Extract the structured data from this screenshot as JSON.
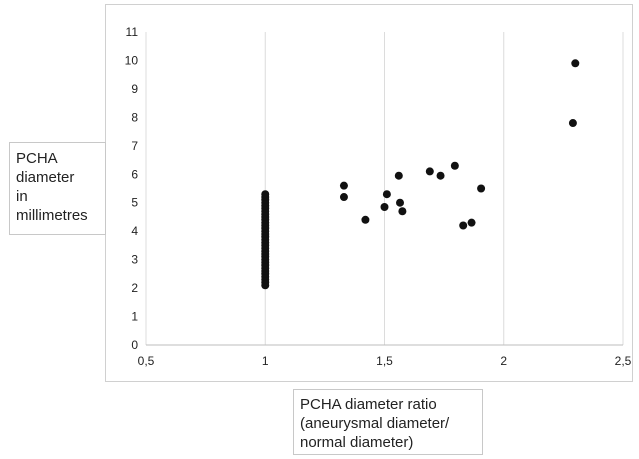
{
  "chart_data": {
    "type": "scatter",
    "xlabel": "PCHA diameter ratio (aneurysmal diameter/ normal diameter)",
    "ylabel": "PCHA diameter in millimetres",
    "xlim": [
      0.5,
      2.5
    ],
    "ylim": [
      0,
      11
    ],
    "x_ticks": [
      "0,5",
      "1",
      "1,5",
      "2",
      "2,5"
    ],
    "y_ticks": [
      "0",
      "1",
      "2",
      "3",
      "4",
      "5",
      "6",
      "7",
      "8",
      "9",
      "10",
      "11"
    ],
    "grid": "vertical",
    "marker_color": "#111111",
    "series": [
      {
        "points": [
          [
            1,
            2.1
          ],
          [
            1,
            2.2
          ],
          [
            1,
            2.3
          ],
          [
            1,
            2.4
          ],
          [
            1,
            2.5
          ],
          [
            1,
            2.6
          ],
          [
            1,
            2.7
          ],
          [
            1,
            2.8
          ],
          [
            1,
            2.9
          ],
          [
            1,
            3.0
          ],
          [
            1,
            3.1
          ],
          [
            1,
            3.2
          ],
          [
            1,
            3.3
          ],
          [
            1,
            3.4
          ],
          [
            1,
            3.5
          ],
          [
            1,
            3.6
          ],
          [
            1,
            3.7
          ],
          [
            1,
            3.8
          ],
          [
            1,
            3.9
          ],
          [
            1,
            4.0
          ],
          [
            1,
            4.1
          ],
          [
            1,
            4.2
          ],
          [
            1,
            4.3
          ],
          [
            1,
            4.4
          ],
          [
            1,
            4.5
          ],
          [
            1,
            4.6
          ],
          [
            1,
            4.7
          ],
          [
            1,
            4.8
          ],
          [
            1,
            4.9
          ],
          [
            1,
            5.0
          ],
          [
            1,
            5.1
          ],
          [
            1,
            5.2
          ],
          [
            1,
            5.3
          ],
          [
            1.33,
            5.6
          ],
          [
            1.33,
            5.2
          ],
          [
            1.42,
            4.4
          ],
          [
            1.5,
            4.85
          ],
          [
            1.51,
            5.3
          ],
          [
            1.56,
            5.95
          ],
          [
            1.565,
            5.0
          ],
          [
            1.575,
            4.7
          ],
          [
            1.69,
            6.1
          ],
          [
            1.735,
            5.95
          ],
          [
            1.795,
            6.3
          ],
          [
            1.83,
            4.2
          ],
          [
            1.865,
            4.3
          ],
          [
            1.905,
            5.5
          ],
          [
            2.29,
            7.8
          ],
          [
            2.3,
            9.9
          ]
        ]
      }
    ]
  },
  "ylabel_box": {
    "lines": [
      "PCHA",
      "diameter",
      "in",
      "millimetres"
    ]
  },
  "xlabel_box": {
    "lines": [
      "PCHA diameter ratio",
      "(aneurysmal diameter/",
      "normal diameter)"
    ]
  }
}
